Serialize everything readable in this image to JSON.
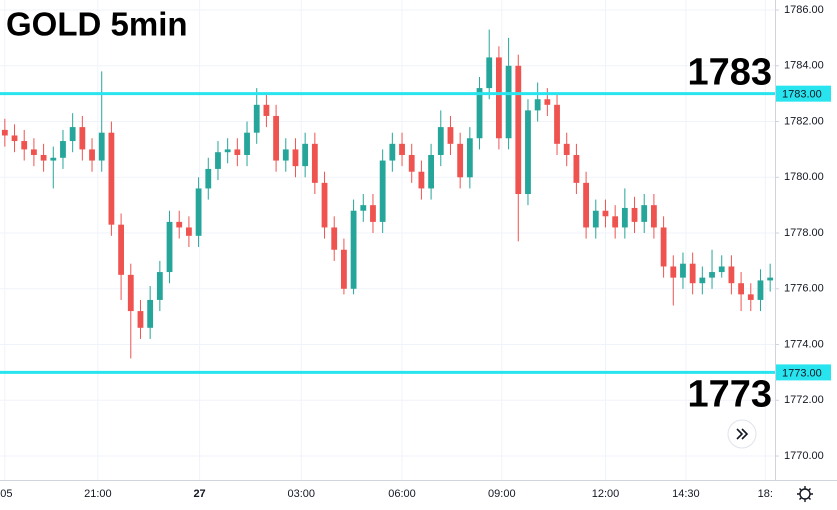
{
  "chart_data": {
    "type": "candlestick",
    "title": "GOLD 5min",
    "up_color": "#26a69a",
    "down_color": "#ef5350",
    "xlim": [
      0,
      80
    ],
    "xticks": [
      {
        "value": 0.5,
        "label": ":05"
      },
      {
        "value": 10.1,
        "label": "21:00"
      },
      {
        "value": 20.6,
        "label": "27"
      },
      {
        "value": 31.1,
        "label": "03:00"
      },
      {
        "value": 41.5,
        "label": "06:00"
      },
      {
        "value": 51.8,
        "label": "09:00"
      },
      {
        "value": 62.5,
        "label": "12:00"
      },
      {
        "value": 70.8,
        "label": "14:30"
      },
      {
        "value": 79,
        "label": "18:"
      }
    ],
    "ylim": [
      1769.14,
      1786.36
    ],
    "yticks": [
      {
        "value": 1770,
        "label": "1770.00"
      },
      {
        "value": 1772,
        "label": "1772.00"
      },
      {
        "value": 1774,
        "label": "1774.00"
      },
      {
        "value": 1776,
        "label": "1776.00"
      },
      {
        "value": 1778,
        "label": "1778.00"
      },
      {
        "value": 1780,
        "label": "1780.00"
      },
      {
        "value": 1782,
        "label": "1782.00"
      },
      {
        "value": 1784,
        "label": "1784.00"
      },
      {
        "value": 1786,
        "label": "1786.00"
      }
    ],
    "grid": true,
    "levels": [
      {
        "value": 1783,
        "label": "1783",
        "tag": "1783.00",
        "color": "#28e4ee"
      },
      {
        "value": 1773,
        "label": "1773",
        "tag": "1773.00",
        "color": "#28e4ee"
      }
    ],
    "open": [
      1781.7,
      1781.5,
      1781.3,
      1781.0,
      1780.8,
      1780.6,
      1780.7,
      1781.3,
      1781.8,
      1781.0,
      1780.6,
      1781.6,
      1778.3,
      1776.5,
      1775.2,
      1774.6,
      1775.6,
      1776.6,
      1778.4,
      1778.2,
      1777.9,
      1779.6,
      1780.3,
      1780.9,
      1781.0,
      1780.8,
      1781.6,
      1782.6,
      1782.2,
      1780.6,
      1781.0,
      1780.4,
      1781.2,
      1779.8,
      1778.2,
      1777.4,
      1776.0,
      1778.8,
      1779.0,
      1778.4,
      1780.6,
      1781.2,
      1780.8,
      1780.2,
      1779.6,
      1780.8,
      1781.8,
      1781.2,
      1780.0,
      1781.4,
      1783.2,
      1784.3,
      1781.4,
      1784.0,
      1779.4,
      1782.4,
      1782.8,
      1782.6,
      1781.2,
      1780.8,
      1779.8,
      1778.2,
      1778.8,
      1778.6,
      1778.2,
      1778.9,
      1778.4,
      1779.0,
      1778.2,
      1776.8,
      1776.4,
      1776.9,
      1776.2,
      1776.4,
      1776.6,
      1776.8,
      1776.2,
      1775.8,
      1775.6,
      1776.3
    ],
    "high": [
      1782.1,
      1781.9,
      1781.7,
      1781.4,
      1781.2,
      1781.1,
      1781.7,
      1782.3,
      1782.2,
      1781.4,
      1783.8,
      1782.0,
      1778.7,
      1776.9,
      1775.6,
      1776.1,
      1777.0,
      1778.8,
      1778.8,
      1778.6,
      1780.0,
      1780.7,
      1781.3,
      1781.4,
      1781.4,
      1782.0,
      1783.2,
      1783.0,
      1782.6,
      1781.4,
      1781.4,
      1781.6,
      1781.6,
      1780.2,
      1778.6,
      1777.8,
      1779.2,
      1779.4,
      1779.4,
      1781.0,
      1781.6,
      1781.6,
      1781.2,
      1780.6,
      1781.2,
      1782.4,
      1782.2,
      1781.6,
      1781.8,
      1783.6,
      1785.3,
      1784.7,
      1785.0,
      1784.4,
      1782.8,
      1783.4,
      1783.2,
      1783.0,
      1781.6,
      1781.2,
      1780.2,
      1779.2,
      1779.2,
      1779.0,
      1779.6,
      1779.3,
      1779.4,
      1779.4,
      1778.6,
      1777.2,
      1777.3,
      1777.3,
      1776.8,
      1777.4,
      1777.2,
      1777.2,
      1776.6,
      1776.2,
      1776.7,
      1776.9
    ],
    "low": [
      1781.1,
      1780.9,
      1780.6,
      1780.4,
      1780.2,
      1779.6,
      1780.3,
      1780.9,
      1780.6,
      1780.2,
      1780.2,
      1777.9,
      1775.6,
      1773.5,
      1774.2,
      1774.2,
      1775.2,
      1776.2,
      1777.8,
      1777.5,
      1777.5,
      1779.2,
      1779.9,
      1780.5,
      1780.4,
      1780.4,
      1781.2,
      1781.8,
      1780.2,
      1780.2,
      1780.0,
      1780.0,
      1779.4,
      1777.8,
      1777.0,
      1775.8,
      1775.8,
      1778.4,
      1778.0,
      1778.0,
      1780.2,
      1780.4,
      1779.8,
      1779.2,
      1779.2,
      1780.4,
      1780.8,
      1779.6,
      1779.6,
      1781.0,
      1782.8,
      1781.0,
      1781.0,
      1777.7,
      1779.0,
      1782.0,
      1782.2,
      1780.8,
      1780.4,
      1779.4,
      1777.8,
      1777.8,
      1778.2,
      1777.8,
      1777.8,
      1778.0,
      1778.0,
      1777.8,
      1776.4,
      1775.4,
      1776.0,
      1775.8,
      1775.8,
      1776.0,
      1776.4,
      1775.8,
      1775.2,
      1775.2,
      1775.2,
      1775.9
    ],
    "close": [
      1781.5,
      1781.3,
      1781.0,
      1780.8,
      1780.6,
      1780.7,
      1781.3,
      1781.8,
      1781.0,
      1780.6,
      1781.6,
      1778.3,
      1776.5,
      1775.2,
      1774.6,
      1775.6,
      1776.6,
      1778.4,
      1778.2,
      1777.9,
      1779.6,
      1780.3,
      1780.9,
      1781.0,
      1780.8,
      1781.6,
      1782.6,
      1782.2,
      1780.6,
      1781.0,
      1780.4,
      1781.2,
      1779.8,
      1778.2,
      1777.4,
      1776.0,
      1778.8,
      1779.0,
      1778.4,
      1780.6,
      1781.2,
      1780.8,
      1780.2,
      1779.6,
      1780.8,
      1781.8,
      1781.2,
      1780.0,
      1781.4,
      1783.2,
      1784.3,
      1781.4,
      1784.0,
      1779.4,
      1782.4,
      1782.8,
      1782.6,
      1781.2,
      1780.8,
      1779.8,
      1778.2,
      1778.8,
      1778.6,
      1778.2,
      1778.9,
      1778.4,
      1779.0,
      1778.2,
      1776.8,
      1776.4,
      1776.9,
      1776.2,
      1776.4,
      1776.6,
      1776.8,
      1776.2,
      1775.8,
      1775.6,
      1776.3,
      1776.4
    ]
  }
}
